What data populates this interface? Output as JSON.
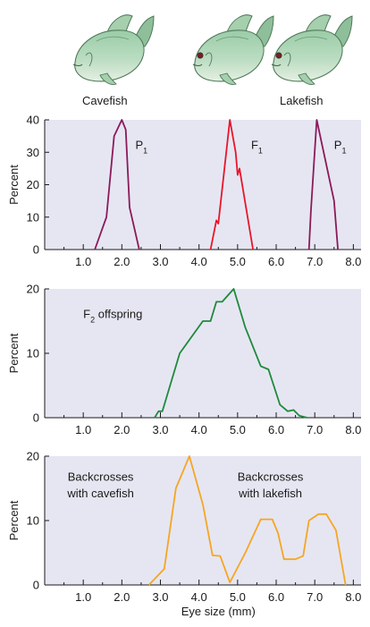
{
  "fish_labels": {
    "left": "Cavefish",
    "right": "Lakefish"
  },
  "x_tick_labels": [
    "1.0",
    "2.0",
    "3.0",
    "4.0",
    "5.0",
    "6.0",
    "7.0",
    "8.0"
  ],
  "xlabel": "Eye size (mm)",
  "ylabel": "Percent",
  "colors": {
    "panel_bg": "#e6e6f2",
    "axis": "#1a1a1a",
    "p1": "#8b1a5a",
    "f1": "#e8162a",
    "f2": "#1e8a3c",
    "backcross": "#f5a623"
  },
  "chart_data": [
    {
      "type": "line",
      "xlim": [
        0,
        8.2
      ],
      "ylim": [
        0,
        40
      ],
      "yticks": [
        0,
        10,
        20,
        30,
        40
      ],
      "xlabel": "",
      "ylabel": "Percent",
      "series": [
        {
          "name": "P1",
          "color": "#8b1a5a",
          "x": [
            1.3,
            1.6,
            1.8,
            2.0,
            2.1,
            2.2,
            2.45
          ],
          "y": [
            0,
            10,
            35,
            40,
            37,
            13,
            0
          ]
        },
        {
          "name": "F1",
          "color": "#e8162a",
          "x": [
            4.3,
            4.45,
            4.5,
            4.8,
            4.95,
            5.0,
            5.05,
            5.4
          ],
          "y": [
            0,
            9,
            8,
            40,
            30,
            23,
            25,
            0
          ]
        },
        {
          "name": "P1",
          "color": "#8b1a5a",
          "x": [
            6.85,
            6.9,
            7.05,
            7.5,
            7.6
          ],
          "y": [
            0,
            12,
            40,
            15,
            0
          ]
        }
      ],
      "annotations": [
        {
          "text": "P",
          "sub": "1",
          "x": 2.35,
          "y": 31,
          "color": "#1a1a1a"
        },
        {
          "text": "F",
          "sub": "1",
          "x": 5.35,
          "y": 31,
          "color": "#1a1a1a"
        },
        {
          "text": "P",
          "sub": "1",
          "x": 7.5,
          "y": 31,
          "color": "#1a1a1a"
        }
      ]
    },
    {
      "type": "line",
      "xlim": [
        0,
        8.2
      ],
      "ylim": [
        0,
        20
      ],
      "yticks": [
        0,
        10,
        20
      ],
      "xlabel": "",
      "ylabel": "Percent",
      "series": [
        {
          "name": "F2 offspring",
          "color": "#1e8a3c",
          "x": [
            2.85,
            2.95,
            3.05,
            3.5,
            4.1,
            4.3,
            4.45,
            4.6,
            4.9,
            5.2,
            5.6,
            5.8,
            6.1,
            6.3,
            6.45,
            6.6,
            6.8
          ],
          "y": [
            0,
            1,
            1,
            10,
            15,
            15,
            18,
            18,
            20,
            14,
            8,
            7.5,
            2,
            1,
            1.2,
            0.3,
            0
          ]
        }
      ],
      "annotations": [
        {
          "text": "F",
          "sub": "2",
          "tail": " offspring",
          "x": 1.0,
          "y": 15.5,
          "color": "#1a1a1a"
        }
      ]
    },
    {
      "type": "line",
      "xlim": [
        0,
        8.2
      ],
      "ylim": [
        0,
        20
      ],
      "yticks": [
        0,
        10,
        20
      ],
      "xlabel": "Eye size (mm)",
      "ylabel": "Percent",
      "series": [
        {
          "name": "Backcrosses with cavefish",
          "color": "#f5a623",
          "x": [
            2.7,
            3.1,
            3.4,
            3.75,
            4.1,
            4.35,
            4.55,
            4.8,
            5.2,
            5.6,
            5.9,
            6.05,
            6.2,
            6.5,
            6.7,
            6.85,
            7.1,
            7.3,
            7.55,
            7.8
          ],
          "y": [
            0,
            2.5,
            15,
            20,
            12.5,
            4.6,
            4.5,
            0.4,
            5,
            10.2,
            10.2,
            8,
            4,
            4,
            4.5,
            10,
            11,
            11,
            8.5,
            0
          ]
        }
      ],
      "annotations": [
        {
          "text": "Backcrosses",
          "x": 1.45,
          "y": 16.2,
          "anchor": "middle",
          "color": "#1a1a1a"
        },
        {
          "text": "with cavefish",
          "x": 1.45,
          "y": 13.6,
          "anchor": "middle",
          "color": "#1a1a1a"
        },
        {
          "text": "Backcrosses",
          "x": 5.85,
          "y": 16.2,
          "anchor": "middle",
          "color": "#1a1a1a"
        },
        {
          "text": "with lakefish",
          "x": 5.85,
          "y": 13.6,
          "anchor": "middle",
          "color": "#1a1a1a"
        }
      ]
    }
  ]
}
